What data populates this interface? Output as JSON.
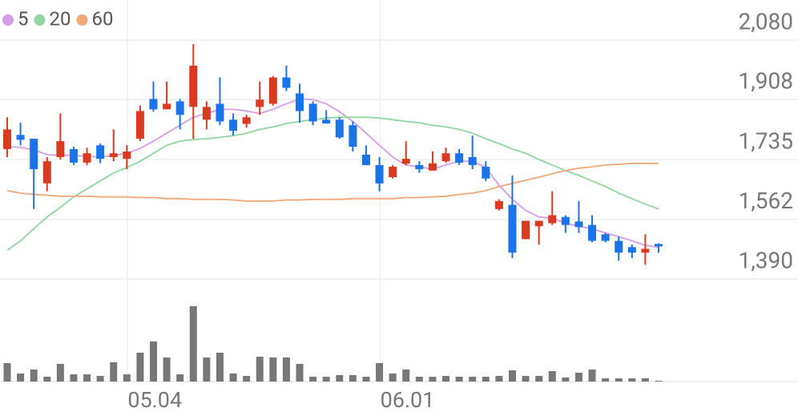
{
  "chart_data": {
    "type": "candlestick",
    "categories": [
      null,
      null,
      null,
      null,
      null,
      null,
      null,
      null,
      null,
      "05.04",
      null,
      null,
      null,
      null,
      null,
      null,
      null,
      null,
      null,
      null,
      null,
      null,
      null,
      null,
      null,
      null,
      null,
      null,
      "06.01",
      null,
      null,
      null,
      null,
      null,
      null,
      null,
      null,
      null,
      null,
      null,
      null,
      null,
      null,
      null,
      null,
      null,
      null,
      null,
      null,
      null
    ],
    "open": [
      1765,
      1806,
      1795,
      1666,
      1742,
      1765,
      1726,
      1776,
      1742,
      1737,
      1795,
      1910,
      1880,
      1903,
      1887,
      1850,
      1896,
      1850,
      1838,
      1887,
      1896,
      1972,
      1926,
      1896,
      1850,
      1850,
      1834,
      1749,
      1719,
      1684,
      1723,
      1719,
      1703,
      1730,
      1753,
      1742,
      1714,
      1592,
      1604,
      1505,
      1542,
      1551,
      1569,
      1556,
      1546,
      1519,
      1500,
      1482,
      1466,
      1491
    ],
    "high": [
      1857,
      1841,
      1795,
      1742,
      1868,
      1772,
      1769,
      1781,
      1822,
      1776,
      1891,
      1960,
      1960,
      1910,
      2068,
      1903,
      1972,
      1868,
      1864,
      1960,
      1976,
      2006,
      1954,
      1903,
      1878,
      1857,
      1845,
      1776,
      1742,
      1719,
      1788,
      1730,
      1758,
      1769,
      1765,
      1804,
      1730,
      1620,
      1689,
      1558,
      1558,
      1643,
      1574,
      1615,
      1574,
      1523,
      1512,
      1489,
      1519,
      1493
    ],
    "low": [
      1742,
      1776,
      1592,
      1643,
      1735,
      1719,
      1719,
      1724,
      1730,
      1707,
      1788,
      1873,
      1880,
      1822,
      1795,
      1822,
      1834,
      1804,
      1827,
      1864,
      1891,
      1933,
      1841,
      1834,
      1839,
      1795,
      1758,
      1719,
      1643,
      1680,
      1719,
      1696,
      1703,
      1726,
      1719,
      1707,
      1673,
      1588,
      1450,
      1505,
      1489,
      1546,
      1523,
      1523,
      1496,
      1496,
      1443,
      1450,
      1431,
      1466
    ],
    "close": [
      1822,
      1792,
      1707,
      1730,
      1788,
      1726,
      1753,
      1737,
      1753,
      1758,
      1875,
      1880,
      1896,
      1864,
      2006,
      1887,
      1845,
      1818,
      1857,
      1908,
      1972,
      1942,
      1875,
      1845,
      1839,
      1799,
      1772,
      1719,
      1666,
      1714,
      1737,
      1707,
      1724,
      1753,
      1726,
      1719,
      1680,
      1615,
      1466,
      1558,
      1558,
      1574,
      1546,
      1540,
      1500,
      1500,
      1466,
      1466,
      1477,
      1484
    ],
    "up_color": "#d93a20",
    "down_color": "#1a73e8",
    "series": [
      {
        "name": "5",
        "color": "#d59de8",
        "values": [
          1772,
          1770,
          1763,
          1749,
          1747,
          1747,
          1744,
          1742,
          1747,
          1753,
          1767,
          1788,
          1811,
          1834,
          1857,
          1868,
          1880,
          1880,
          1875,
          1868,
          1880,
          1896,
          1910,
          1908,
          1896,
          1873,
          1845,
          1811,
          1776,
          1742,
          1719,
          1714,
          1707,
          1719,
          1730,
          1730,
          1712,
          1661,
          1620,
          1588,
          1569,
          1565,
          1551,
          1542,
          1535,
          1523,
          1512,
          1500,
          1487,
          1482
        ]
      },
      {
        "name": "20",
        "color": "#8fd6a0",
        "values": [
          1473,
          1500,
          1535,
          1569,
          1597,
          1627,
          1650,
          1673,
          1696,
          1712,
          1730,
          1753,
          1776,
          1788,
          1793,
          1795,
          1799,
          1804,
          1811,
          1822,
          1829,
          1839,
          1845,
          1850,
          1855,
          1857,
          1857,
          1857,
          1855,
          1850,
          1845,
          1841,
          1834,
          1829,
          1822,
          1811,
          1795,
          1781,
          1765,
          1753,
          1735,
          1719,
          1703,
          1689,
          1673,
          1657,
          1638,
          1622,
          1606,
          1592
        ]
      },
      {
        "name": "60",
        "color": "#f0a77a",
        "values": [
          1645,
          1638,
          1634,
          1632,
          1629,
          1629,
          1629,
          1627,
          1627,
          1627,
          1625,
          1625,
          1622,
          1622,
          1620,
          1620,
          1620,
          1618,
          1615,
          1615,
          1615,
          1618,
          1618,
          1620,
          1620,
          1620,
          1622,
          1622,
          1622,
          1622,
          1625,
          1625,
          1627,
          1629,
          1634,
          1638,
          1645,
          1657,
          1666,
          1675,
          1684,
          1694,
          1703,
          1710,
          1714,
          1719,
          1721,
          1724,
          1724,
          1724
        ]
      }
    ],
    "volume": [
      23,
      10,
      15,
      6,
      22,
      9,
      9,
      7,
      24,
      9,
      36,
      50,
      30,
      9,
      94,
      30,
      36,
      10,
      7,
      31,
      30,
      30,
      22,
      6,
      6,
      8,
      8,
      6,
      23,
      10,
      15,
      6,
      6,
      7,
      6,
      6,
      6,
      7,
      14,
      7,
      7,
      13,
      5,
      11,
      15,
      4,
      4,
      4,
      4,
      1
    ],
    "volume_color": "#777777",
    "ylim": [
      1390,
      2080
    ],
    "yticks": [
      {
        "value": 1390,
        "label": "1,390"
      },
      {
        "value": 1562,
        "label": "1,562"
      },
      {
        "value": 1735,
        "label": "1,735"
      },
      {
        "value": 1908,
        "label": "1,908"
      },
      {
        "value": 2080,
        "label": "2,080"
      }
    ],
    "grid": true
  }
}
